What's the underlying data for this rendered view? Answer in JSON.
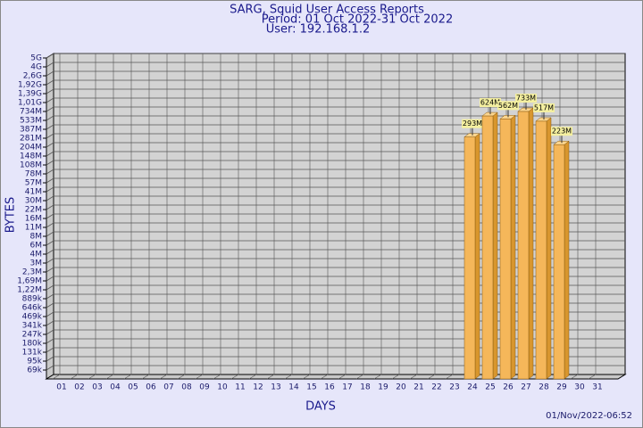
{
  "chart_data": {
    "type": "bar",
    "title": [
      "SARG, Squid User Access Reports",
      "Period: 01 Oct 2022-31 Oct 2022",
      "User: 192.168.1.2"
    ],
    "x_label": "DAYS",
    "y_label": "BYTES",
    "footer": "01/Nov/2022-06:52",
    "categories": [
      "01",
      "02",
      "03",
      "04",
      "05",
      "06",
      "07",
      "08",
      "09",
      "10",
      "11",
      "12",
      "13",
      "14",
      "15",
      "16",
      "17",
      "18",
      "19",
      "20",
      "21",
      "22",
      "23",
      "24",
      "25",
      "26",
      "27",
      "28",
      "29",
      "30",
      "31"
    ],
    "values": [
      null,
      null,
      null,
      null,
      null,
      null,
      null,
      null,
      null,
      null,
      null,
      null,
      null,
      null,
      null,
      null,
      null,
      null,
      null,
      null,
      null,
      null,
      null,
      293000000,
      624000000,
      562000000,
      733000000,
      517000000,
      223000000,
      null,
      null
    ],
    "value_labels": [
      null,
      null,
      null,
      null,
      null,
      null,
      null,
      null,
      null,
      null,
      null,
      null,
      null,
      null,
      null,
      null,
      null,
      null,
      null,
      null,
      null,
      null,
      null,
      "293M",
      "624M",
      "562M",
      "733M",
      "517M",
      "223M",
      null,
      null
    ],
    "color": "#f5b75a",
    "log_scale": true,
    "grid": true,
    "ylim": [
      50000,
      5000000000
    ],
    "yticks": [
      {
        "value": 5000000000,
        "label": "5G"
      },
      {
        "value": 4000000000,
        "label": "4G"
      },
      {
        "value": 2600000000,
        "label": "2,6G"
      },
      {
        "value": 1920000000,
        "label": "1,92G"
      },
      {
        "value": 1390000000,
        "label": "1,39G"
      },
      {
        "value": 1010000000,
        "label": "1,01G"
      },
      {
        "value": 734000000,
        "label": "734M"
      },
      {
        "value": 533000000,
        "label": "533M"
      },
      {
        "value": 387000000,
        "label": "387M"
      },
      {
        "value": 281000000,
        "label": "281M"
      },
      {
        "value": 204000000,
        "label": "204M"
      },
      {
        "value": 148000000,
        "label": "148M"
      },
      {
        "value": 108000000,
        "label": "108M"
      },
      {
        "value": 78000000,
        "label": "78M"
      },
      {
        "value": 57000000,
        "label": "57M"
      },
      {
        "value": 41000000,
        "label": "41M"
      },
      {
        "value": 30000000,
        "label": "30M"
      },
      {
        "value": 22000000,
        "label": "22M"
      },
      {
        "value": 16000000,
        "label": "16M"
      },
      {
        "value": 11000000,
        "label": "11M"
      },
      {
        "value": 8000000,
        "label": "8M"
      },
      {
        "value": 6000000,
        "label": "6M"
      },
      {
        "value": 4000000,
        "label": "4M"
      },
      {
        "value": 3000000,
        "label": "3M"
      },
      {
        "value": 2300000,
        "label": "2,3M"
      },
      {
        "value": 1690000,
        "label": "1,69M"
      },
      {
        "value": 1220000,
        "label": "1,22M"
      },
      {
        "value": 889000,
        "label": "889k"
      },
      {
        "value": 646000,
        "label": "646k"
      },
      {
        "value": 469000,
        "label": "469k"
      },
      {
        "value": 341000,
        "label": "341k"
      },
      {
        "value": 247000,
        "label": "247k"
      },
      {
        "value": 180000,
        "label": "180k"
      },
      {
        "value": 131000,
        "label": "131k"
      },
      {
        "value": 95000,
        "label": "95k"
      },
      {
        "value": 69000,
        "label": "69k"
      }
    ]
  }
}
